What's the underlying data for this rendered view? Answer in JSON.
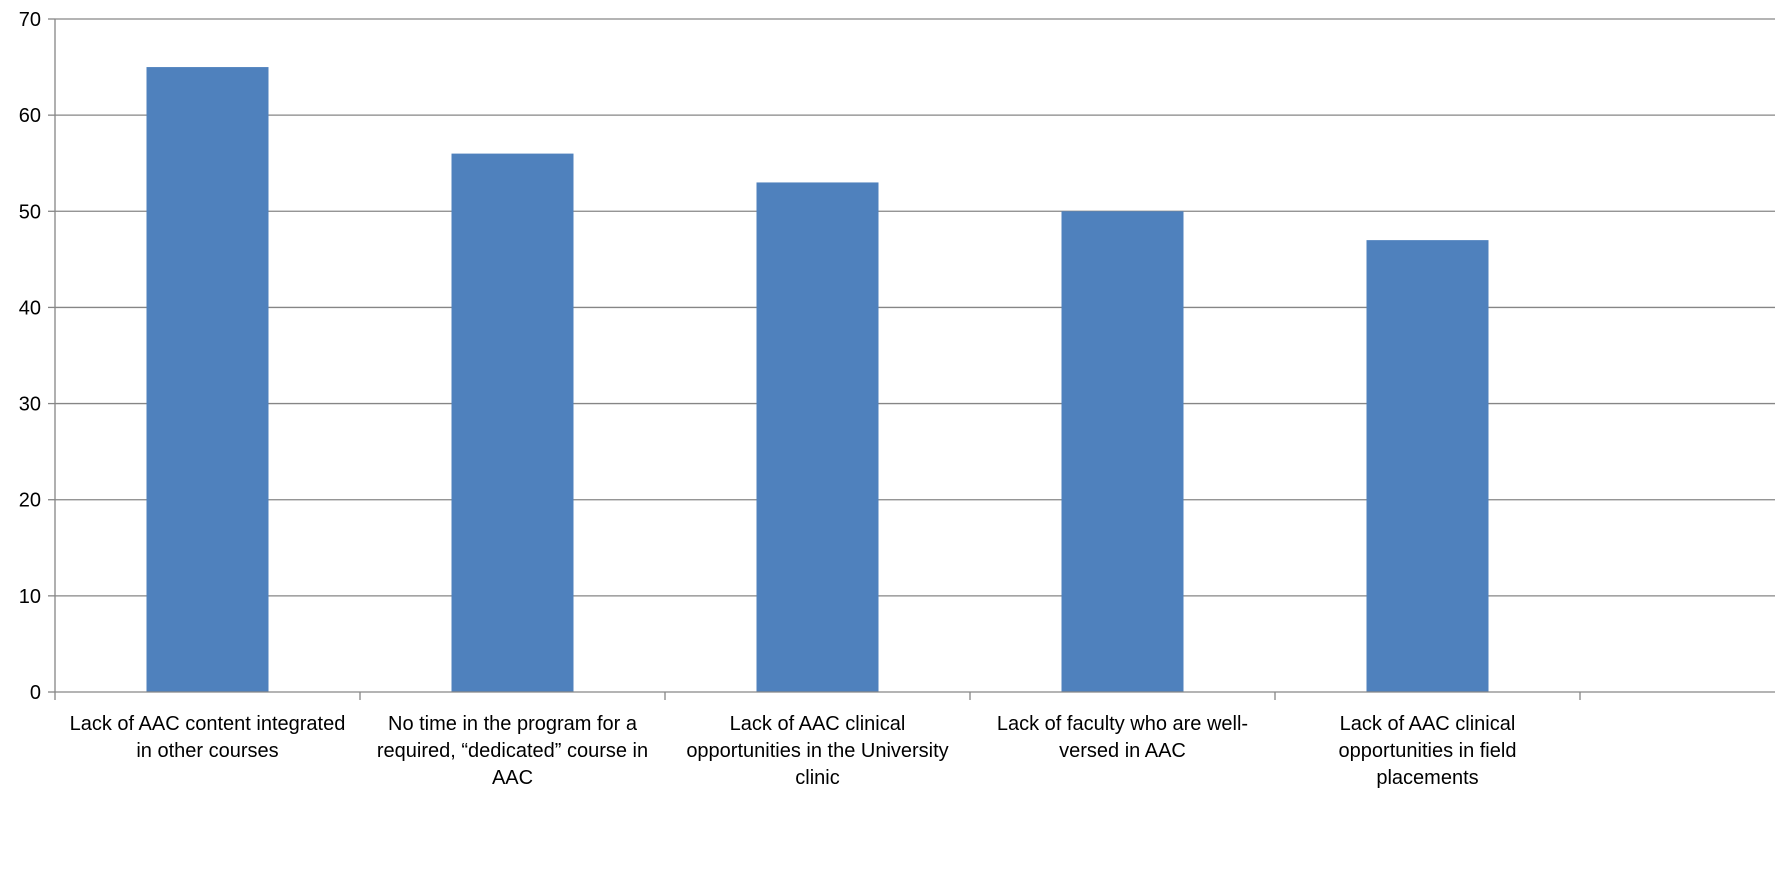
{
  "chart_data": {
    "type": "bar",
    "title": "",
    "xlabel": "",
    "ylabel": "",
    "ylim": [
      0,
      70
    ],
    "y_ticks": [
      0,
      10,
      20,
      30,
      40,
      50,
      60,
      70
    ],
    "grid": true,
    "legend": "none",
    "colors": {
      "bar": "#4F81BD",
      "grid": "#868686",
      "axis": "#868686"
    },
    "categories": [
      [
        "Lack of AAC content integrated",
        "in other courses"
      ],
      [
        "No time in the program for a",
        "required, “dedicated” course in",
        "AAC"
      ],
      [
        "Lack of AAC clinical",
        "opportunities in the University",
        "clinic"
      ],
      [
        "Lack of faculty who are well-",
        "versed in AAC"
      ],
      [
        "Lack of AAC clinical",
        "opportunities in field",
        "placements"
      ]
    ],
    "values": [
      65,
      56,
      53,
      50,
      47
    ]
  }
}
